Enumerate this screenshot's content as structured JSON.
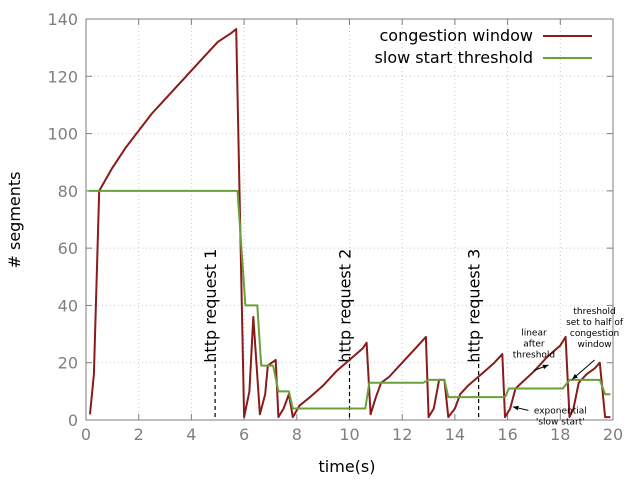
{
  "chart_data": {
    "type": "line",
    "title": "",
    "xlabel": "time(s)",
    "ylabel": "# segments",
    "xlim": [
      0,
      20
    ],
    "ylim": [
      0,
      140
    ],
    "xticks": [
      0,
      2,
      4,
      6,
      8,
      10,
      12,
      14,
      16,
      18,
      20
    ],
    "yticks": [
      0,
      20,
      40,
      60,
      80,
      100,
      120,
      140
    ],
    "grid": true,
    "legend_position": "top-right",
    "series": [
      {
        "name": "congestion window",
        "color": "#8b1a1a",
        "points": [
          [
            0.15,
            2
          ],
          [
            0.3,
            16
          ],
          [
            0.5,
            80
          ],
          [
            1.0,
            88
          ],
          [
            1.5,
            95
          ],
          [
            2.0,
            101
          ],
          [
            2.5,
            107
          ],
          [
            3.0,
            112
          ],
          [
            3.5,
            117
          ],
          [
            4.0,
            122
          ],
          [
            4.5,
            127
          ],
          [
            5.0,
            132
          ],
          [
            5.5,
            135
          ],
          [
            5.7,
            136.5
          ],
          [
            6.0,
            1
          ],
          [
            6.2,
            10
          ],
          [
            6.35,
            36
          ],
          [
            6.6,
            2
          ],
          [
            6.8,
            9
          ],
          [
            6.9,
            19
          ],
          [
            7.2,
            21
          ],
          [
            7.3,
            1
          ],
          [
            7.5,
            4
          ],
          [
            7.7,
            9
          ],
          [
            7.85,
            1
          ],
          [
            8.1,
            5
          ],
          [
            8.5,
            8
          ],
          [
            9.0,
            12
          ],
          [
            9.5,
            17
          ],
          [
            10.0,
            21
          ],
          [
            10.5,
            25
          ],
          [
            10.65,
            27
          ],
          [
            10.8,
            2
          ],
          [
            11.0,
            8
          ],
          [
            11.2,
            13
          ],
          [
            11.5,
            15
          ],
          [
            12.0,
            20
          ],
          [
            12.5,
            25
          ],
          [
            12.9,
            29
          ],
          [
            13.0,
            1
          ],
          [
            13.2,
            4
          ],
          [
            13.4,
            14
          ],
          [
            13.6,
            14
          ],
          [
            13.75,
            1
          ],
          [
            14.0,
            4
          ],
          [
            14.2,
            9
          ],
          [
            14.5,
            12
          ],
          [
            15.0,
            16
          ],
          [
            15.5,
            20
          ],
          [
            15.8,
            23
          ],
          [
            15.9,
            1
          ],
          [
            16.1,
            4
          ],
          [
            16.3,
            11
          ],
          [
            17.0,
            17
          ],
          [
            17.5,
            22
          ],
          [
            18.0,
            26
          ],
          [
            18.2,
            29
          ],
          [
            18.35,
            1
          ],
          [
            18.5,
            4
          ],
          [
            18.7,
            13
          ],
          [
            19.0,
            16
          ],
          [
            19.3,
            18
          ],
          [
            19.5,
            20
          ],
          [
            19.7,
            1
          ],
          [
            19.9,
            1
          ]
        ]
      },
      {
        "name": "slow start threshold",
        "color": "#6aa03a",
        "points": [
          [
            0.1,
            80
          ],
          [
            5.75,
            80
          ],
          [
            6.05,
            40
          ],
          [
            6.5,
            40
          ],
          [
            6.65,
            19
          ],
          [
            7.1,
            19
          ],
          [
            7.3,
            10
          ],
          [
            7.7,
            10
          ],
          [
            7.85,
            4
          ],
          [
            10.6,
            4
          ],
          [
            10.75,
            13
          ],
          [
            12.8,
            13
          ],
          [
            13.0,
            14
          ],
          [
            13.6,
            14
          ],
          [
            13.75,
            8
          ],
          [
            15.9,
            8
          ],
          [
            16.05,
            11
          ],
          [
            18.1,
            11
          ],
          [
            18.35,
            14
          ],
          [
            19.5,
            14
          ],
          [
            19.7,
            9
          ],
          [
            19.9,
            9
          ]
        ]
      }
    ],
    "markers": [
      {
        "label": "http request 1",
        "x": 4.9
      },
      {
        "label": "http request 2",
        "x": 10.0
      },
      {
        "label": "http request 3",
        "x": 14.9
      }
    ],
    "annotations": [
      {
        "lines": [
          "linear",
          "after",
          "threshold"
        ],
        "x": 17.0,
        "y": 29.5,
        "arrow_to": [
          17.55,
          19.2
        ]
      },
      {
        "lines": [
          "threshold",
          "set to half of",
          "congestion",
          "window"
        ],
        "x": 19.3,
        "y": 37.0,
        "arrow_to": [
          18.45,
          14.2
        ]
      },
      {
        "lines": [
          "exponential",
          "'slow start'"
        ],
        "x": 18.0,
        "y": 2.3,
        "arrow_to": [
          16.2,
          4.6
        ]
      }
    ]
  }
}
